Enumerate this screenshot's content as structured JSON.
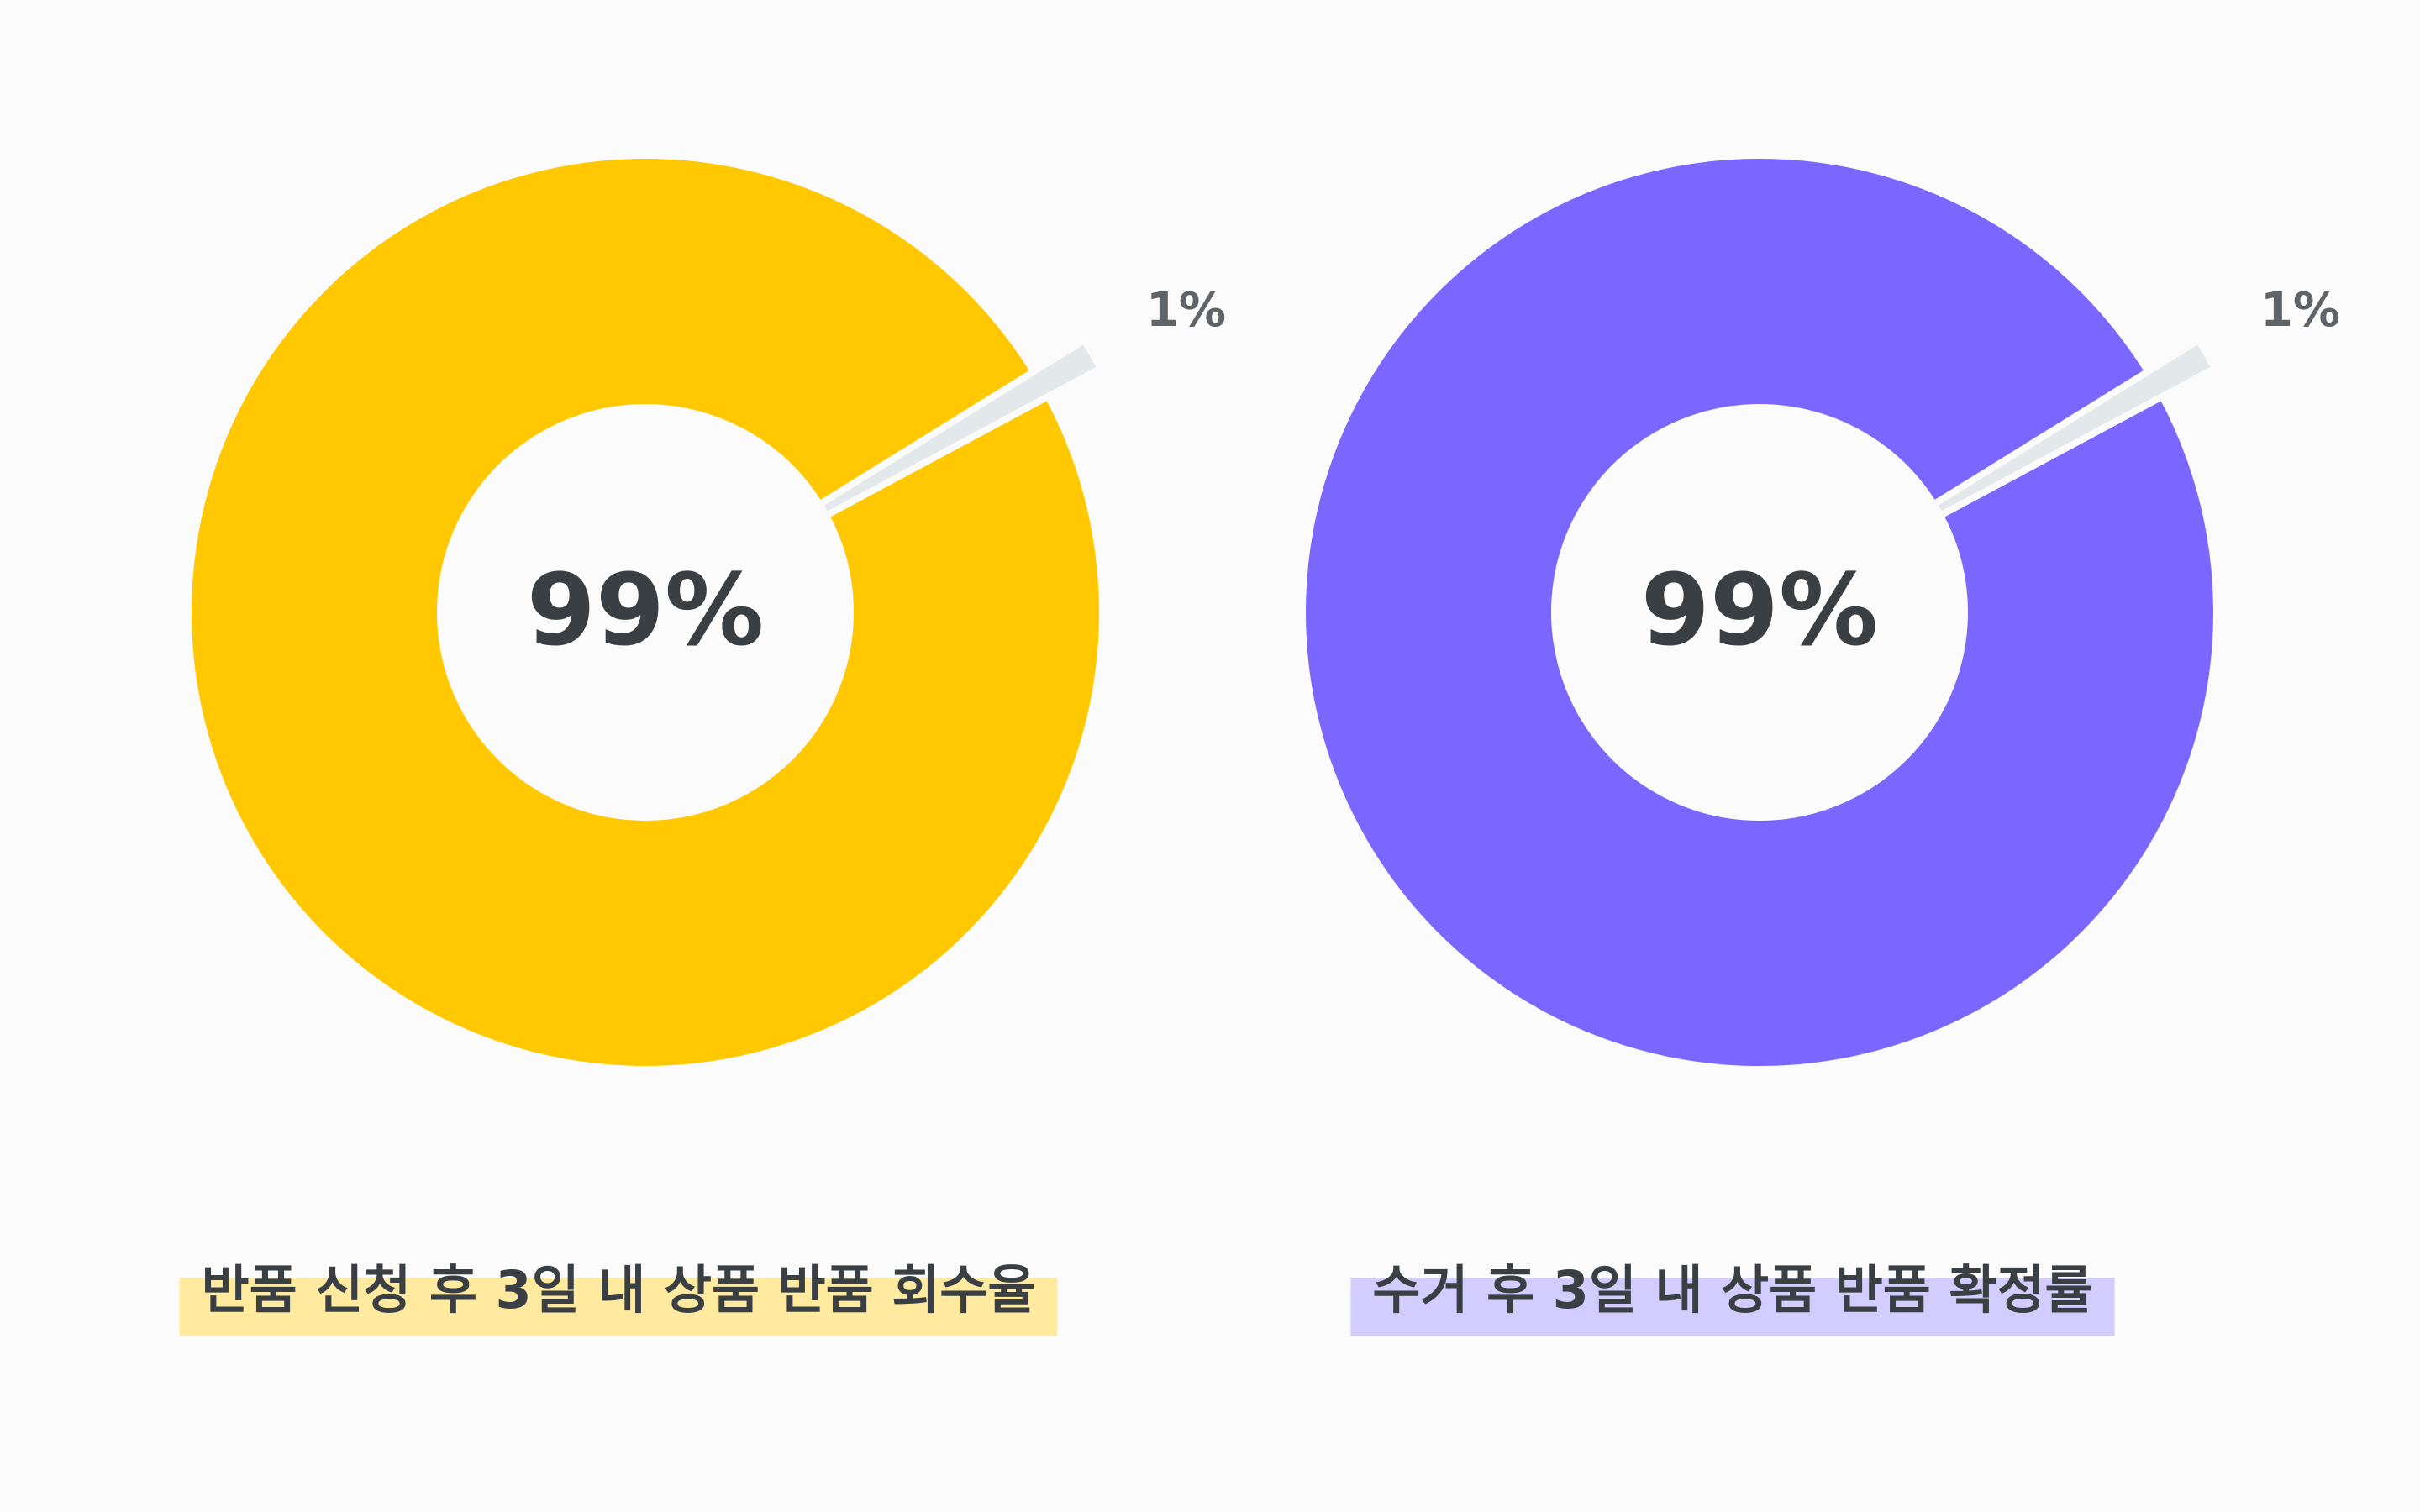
{
  "chart_data": [
    {
      "type": "donut",
      "title": "반품 신청 후 3일 내 상품 반품 회수율",
      "values": [
        99,
        1
      ],
      "value_labels": [
        "99%",
        "1%"
      ],
      "colors": [
        "#ffc800",
        "#e3e8ea"
      ],
      "highlight": "#ffeaa0"
    },
    {
      "type": "donut",
      "title": "수거 후 3일 내 상품 반품 확정률",
      "values": [
        99,
        1
      ],
      "value_labels": [
        "99%",
        "1%"
      ],
      "colors": [
        "#7b66ff",
        "#e3e8ea"
      ],
      "highlight": "#d3ccff"
    }
  ]
}
